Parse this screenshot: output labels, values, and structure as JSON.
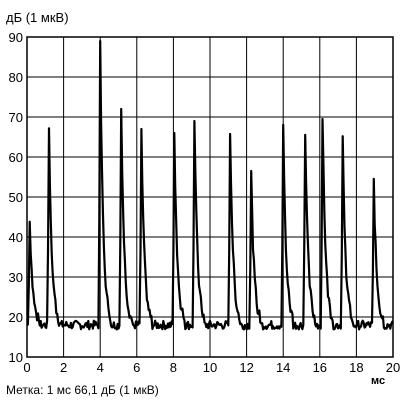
{
  "chart_data": {
    "type": "line",
    "title": "",
    "ylabel": "дБ (1 мкВ)",
    "xlabel": "мс",
    "xlim": [
      0,
      20
    ],
    "ylim": [
      10,
      90
    ],
    "xticks": [
      0,
      2,
      4,
      6,
      8,
      10,
      12,
      14,
      16,
      18,
      20
    ],
    "yticks": [
      10,
      20,
      30,
      40,
      50,
      60,
      70,
      80,
      90
    ],
    "grid": true,
    "annotation": "Метка: 1 мс  66,1 дБ (1 мкВ)",
    "series": [
      {
        "pulses": [
          {
            "t": 0.15,
            "peak": 44
          },
          {
            "t": 1.2,
            "peak": 67
          },
          {
            "t": 4.0,
            "peak": 89
          },
          {
            "t": 5.15,
            "peak": 72
          },
          {
            "t": 6.25,
            "peak": 67
          },
          {
            "t": 8.05,
            "peak": 66
          },
          {
            "t": 9.15,
            "peak": 69
          },
          {
            "t": 11.1,
            "peak": 67
          },
          {
            "t": 12.25,
            "peak": 56
          },
          {
            "t": 14.0,
            "peak": 68
          },
          {
            "t": 15.2,
            "peak": 67
          },
          {
            "t": 16.15,
            "peak": 71
          },
          {
            "t": 17.25,
            "peak": 65
          },
          {
            "t": 18.95,
            "peak": 54
          }
        ],
        "baseline": 18
      }
    ]
  }
}
